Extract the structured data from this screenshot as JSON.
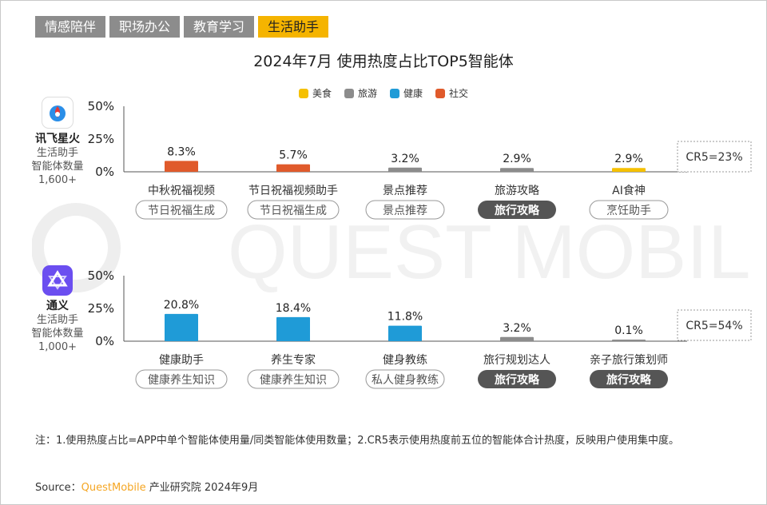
{
  "tabs": [
    "情感陪伴",
    "职场办公",
    "教育学习",
    "生活助手"
  ],
  "active_tab": 3,
  "colors": {
    "美食": "#f5c000",
    "旅游": "#8c8c8c",
    "健康": "#1f9bd7",
    "社交": "#e05a2b"
  },
  "chart_data": {
    "type": "bar",
    "title": "2024年7月 使用热度占比TOP5智能体",
    "legend": [
      "美食",
      "旅游",
      "健康",
      "社交"
    ],
    "ylim": [
      0,
      50
    ],
    "yticks": [
      "50%",
      "25%",
      "0%"
    ],
    "panels": [
      {
        "app": "讯飞星火",
        "app_sub": [
          "生活助手",
          "智能体数量",
          "1,600+"
        ],
        "cr5": "CR5=23%",
        "bars": [
          {
            "name": "中秋祝福视频",
            "value": 8.3,
            "label": "8.3%",
            "category": "社交",
            "tag": "节日祝福生成",
            "tag_dark": false
          },
          {
            "name": "节日祝福视频助手",
            "value": 5.7,
            "label": "5.7%",
            "category": "社交",
            "tag": "节日祝福生成",
            "tag_dark": false
          },
          {
            "name": "景点推荐",
            "value": 3.2,
            "label": "3.2%",
            "category": "旅游",
            "tag": "景点推荐",
            "tag_dark": false
          },
          {
            "name": "旅游攻略",
            "value": 2.9,
            "label": "2.9%",
            "category": "旅游",
            "tag": "旅行攻略",
            "tag_dark": true
          },
          {
            "name": "AI食神",
            "value": 2.9,
            "label": "2.9%",
            "category": "美食",
            "tag": "烹饪助手",
            "tag_dark": false
          }
        ]
      },
      {
        "app": "通义",
        "app_sub": [
          "生活助手",
          "智能体数量",
          "1,000+"
        ],
        "cr5": "CR5=54%",
        "bars": [
          {
            "name": "健康助手",
            "value": 20.8,
            "label": "20.8%",
            "category": "健康",
            "tag": "健康养生知识",
            "tag_dark": false
          },
          {
            "name": "养生专家",
            "value": 18.4,
            "label": "18.4%",
            "category": "健康",
            "tag": "健康养生知识",
            "tag_dark": false
          },
          {
            "name": "健身教练",
            "value": 11.8,
            "label": "11.8%",
            "category": "健康",
            "tag": "私人健身教练",
            "tag_dark": false
          },
          {
            "name": "旅行规划达人",
            "value": 3.2,
            "label": "3.2%",
            "category": "旅游",
            "tag": "旅行攻略",
            "tag_dark": true
          },
          {
            "name": "亲子旅行策划师",
            "value": 0.1,
            "label": "0.1%",
            "category": "旅游",
            "tag": "旅行攻略",
            "tag_dark": true
          }
        ]
      }
    ]
  },
  "watermark": "QUEST MOBILE",
  "note": "注：1.使用热度占比=APP中单个智能体使用量/同类智能体使用数量；2.CR5表示使用热度前五位的智能体合计热度，反映用户使用集中度。",
  "source": {
    "prefix": "Source：",
    "brand": "QuestMobile",
    "suffix": " 产业研究院 2024年9月"
  }
}
